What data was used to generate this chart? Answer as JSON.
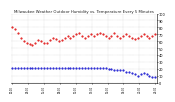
{
  "bg_color": "#ffffff",
  "grid_color": "#bbbbbb",
  "red_series": [
    80,
    78,
    72,
    65,
    60,
    58,
    56,
    55,
    58,
    62,
    60,
    57,
    58,
    62,
    65,
    63,
    60,
    62,
    65,
    67,
    65,
    68,
    70,
    72,
    68,
    65,
    68,
    70,
    68,
    70,
    72,
    70,
    68,
    65,
    68,
    72,
    68,
    65,
    68,
    70,
    68,
    65,
    63,
    65,
    68,
    70,
    68,
    65,
    68,
    70
  ],
  "blue_series": [
    22,
    22,
    22,
    22,
    22,
    22,
    22,
    22,
    22,
    22,
    22,
    22,
    22,
    22,
    22,
    22,
    22,
    22,
    22,
    22,
    22,
    22,
    22,
    22,
    22,
    22,
    22,
    22,
    22,
    22,
    22,
    22,
    22,
    20,
    20,
    18,
    18,
    18,
    18,
    16,
    15,
    14,
    12,
    10,
    12,
    14,
    12,
    10,
    8,
    8
  ],
  "red_color": "#dd0000",
  "blue_color": "#0000cc",
  "ylim": [
    0,
    100
  ],
  "ytick_interval": 10,
  "n_points": 50,
  "title": "Milwaukee Weather Outdoor Humidity vs. Temperature Every 5 Minutes",
  "title_fontsize": 2.8
}
